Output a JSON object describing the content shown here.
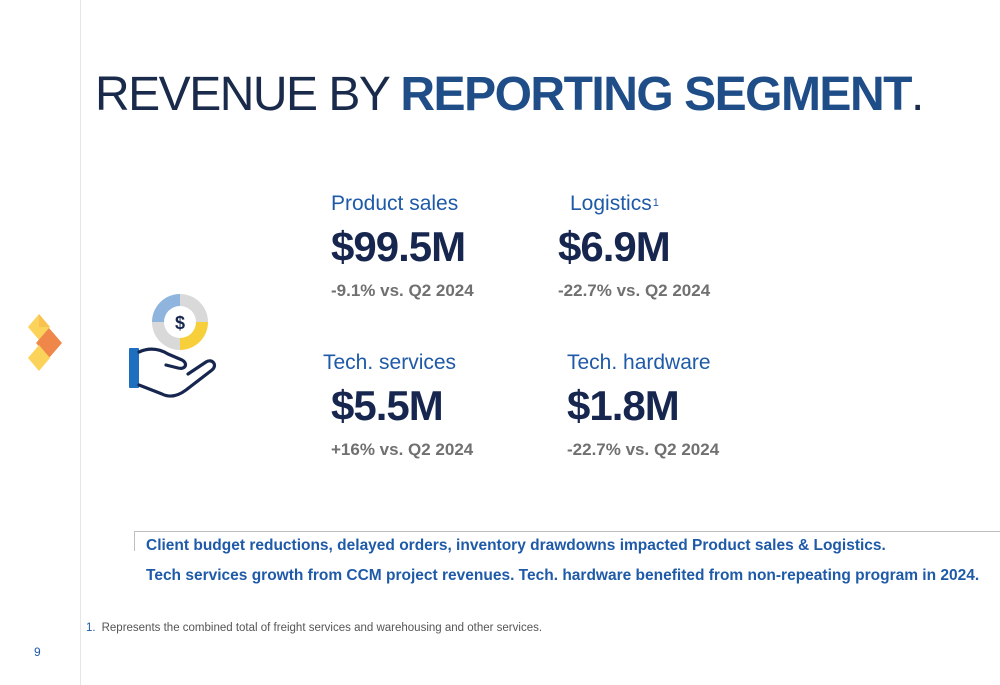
{
  "title": {
    "light": "REVENUE BY ",
    "bold": "REPORTING SEGMENT",
    "dot": "."
  },
  "segments": [
    {
      "label": "Product sales",
      "value": "$99.5M",
      "change": "-9.1% vs. Q2 2024"
    },
    {
      "label": "Logistics",
      "sup": "1",
      "value": "$6.9M",
      "change": "-22.7% vs. Q2 2024"
    },
    {
      "label": "Tech. services",
      "value": "$5.5M",
      "change": "+16% vs. Q2 2024"
    },
    {
      "label": "Tech. hardware",
      "value": "$1.8M",
      "change": "-22.7% vs. Q2 2024"
    }
  ],
  "notes": [
    "Client budget reductions, delayed orders, inventory drawdowns impacted Product sales & Logistics.",
    "Tech services growth from CCM project revenues. Tech. hardware benefited from non-repeating program in 2024."
  ],
  "footnote": {
    "number": "1.",
    "text": "Represents the combined total of freight services and warehousing and other services."
  },
  "page_number": "9",
  "icons": {
    "logo": "diamond-logo-icon",
    "revenue": "hand-dollar-icon"
  },
  "colors": {
    "navy": "#16264f",
    "blue": "#1e5aa8",
    "title_blue": "#1e4d87",
    "gray": "#707070",
    "logo_yellow": "#f9c94a",
    "logo_orange": "#f0874a"
  }
}
